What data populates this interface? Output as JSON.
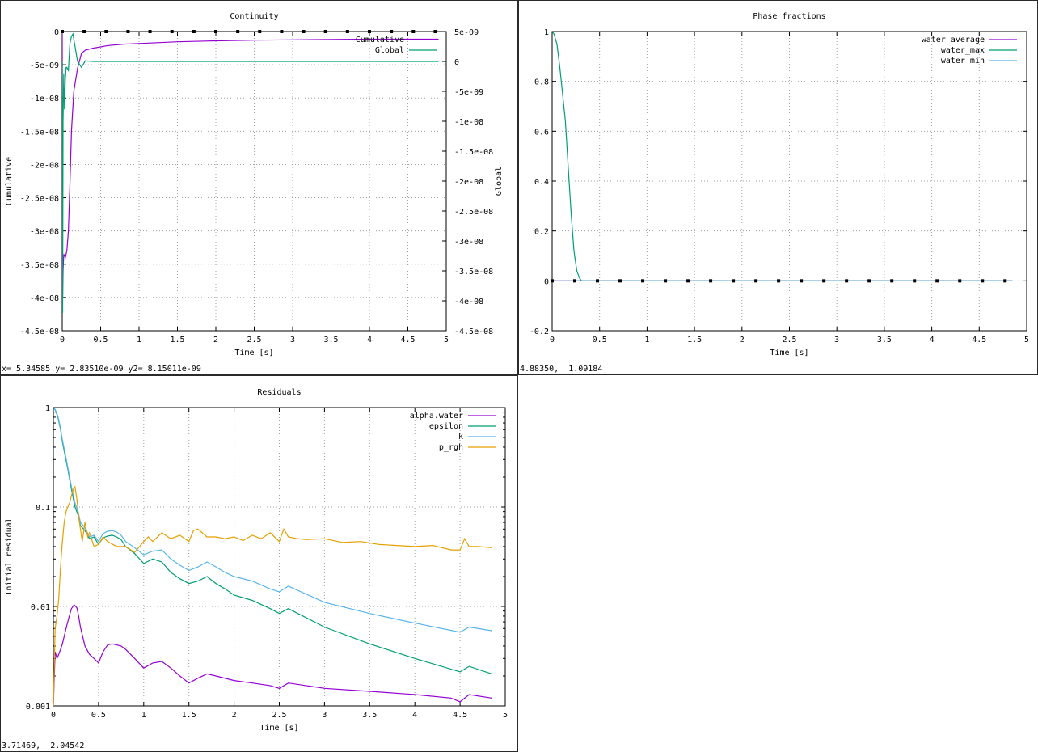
{
  "windows": {
    "continuity": {
      "status": "x= 5.34585 y= 2.83510e-09 y2= 8.15011e-09",
      "chart_data": {
        "type": "line",
        "title": "Continuity",
        "xlabel": "Time [s]",
        "ylabel": "Cumulative",
        "y2label": "Global",
        "xlim": [
          0,
          5
        ],
        "ylim": [
          -4.5e-08,
          0
        ],
        "y2lim": [
          -4.5e-08,
          5e-09
        ],
        "grid": true,
        "legend_position": "top-right",
        "x_ticks": [
          "0",
          "0.5",
          "1",
          "1.5",
          "2",
          "2.5",
          "3",
          "3.5",
          "4",
          "4.5",
          "5"
        ],
        "y_ticks": [
          "0",
          "-5e-09",
          "-1e-08",
          "-1.5e-08",
          "-2e-08",
          "-2.5e-08",
          "-3e-08",
          "-3.5e-08",
          "-4e-08",
          "-4.5e-08"
        ],
        "y2_ticks": [
          "5e-09",
          "0",
          "-5e-09",
          "-1e-08",
          "-1.5e-08",
          "-2e-08",
          "-2.5e-08",
          "-3e-08",
          "-3.5e-08",
          "-4e-08",
          "-4.5e-08"
        ],
        "series": [
          {
            "name": "Cumulative",
            "axis": "y1",
            "color": "#9400d3",
            "x": [
              0,
              0.005,
              0.01,
              0.02,
              0.04,
              0.06,
              0.08,
              0.1,
              0.12,
              0.15,
              0.2,
              0.25,
              0.3,
              0.4,
              0.6,
              0.8,
              1,
              1.5,
              2,
              2.5,
              3,
              3.5,
              4,
              4.5,
              4.9
            ],
            "y": [
              0,
              -4e-08,
              -3.6e-08,
              -3.35e-08,
              -3.4e-08,
              -3.3e-08,
              -3e-08,
              -2.3e-08,
              -1.5e-08,
              -9e-09,
              -5.5e-09,
              -3.3e-09,
              -2.8e-09,
              -2.5e-09,
              -2.1e-09,
              -1.9e-09,
              -1.8e-09,
              -1.55e-09,
              -1.4e-09,
              -1.3e-09,
              -1.25e-09,
              -1.2e-09,
              -1.15e-09,
              -1.15e-09,
              -1.15e-09
            ]
          },
          {
            "name": "Global",
            "axis": "y2",
            "color": "#009e73",
            "x": [
              0,
              0.005,
              0.01,
              0.02,
              0.03,
              0.04,
              0.05,
              0.06,
              0.08,
              0.1,
              0.12,
              0.14,
              0.16,
              0.2,
              0.25,
              0.3,
              0.4,
              1,
              2,
              3,
              4,
              4.9
            ],
            "y": [
              0,
              -4.2e-08,
              -1e-08,
              -2e-09,
              -8e-09,
              -3e-09,
              -1e-09,
              -1e-09,
              -1.5e-09,
              3e-09,
              4.2e-09,
              4.6e-09,
              3e-09,
              0,
              -1e-09,
              1e-10,
              0,
              0,
              0,
              0,
              0,
              0
            ]
          }
        ]
      }
    },
    "phase_fractions": {
      "status": "4.88350,  1.09184",
      "chart_data": {
        "type": "line",
        "title": "Phase fractions",
        "xlabel": "Time [s]",
        "ylabel": "",
        "xlim": [
          0,
          5
        ],
        "ylim": [
          -0.2,
          1
        ],
        "grid": true,
        "legend_position": "top-right",
        "x_ticks": [
          "0",
          "0.5",
          "1",
          "1.5",
          "2",
          "2.5",
          "3",
          "3.5",
          "4",
          "4.5",
          "5"
        ],
        "y_ticks": [
          "1",
          "0.8",
          "0.6",
          "0.4",
          "0.2",
          "0",
          "-0.2"
        ],
        "series": [
          {
            "name": "water_average",
            "color": "#9400d3",
            "x": [
              0,
              4.85
            ],
            "y": [
              0,
              0
            ]
          },
          {
            "name": "water_max",
            "color": "#009e73",
            "x": [
              0,
              0.02,
              0.05,
              0.08,
              0.11,
              0.14,
              0.17,
              0.2,
              0.23,
              0.26,
              0.29,
              0.31,
              0.33,
              0.5,
              1,
              2,
              3,
              4,
              4.85
            ],
            "y": [
              1,
              0.99,
              0.95,
              0.86,
              0.75,
              0.64,
              0.45,
              0.27,
              0.12,
              0.04,
              0.01,
              0,
              0,
              0,
              0,
              0,
              0,
              0,
              0
            ]
          },
          {
            "name": "water_min",
            "color": "#56b4e9",
            "x": [
              0,
              4.85
            ],
            "y": [
              0,
              0
            ]
          }
        ]
      }
    },
    "residuals": {
      "status": "3.71469,  2.04542",
      "chart_data": {
        "type": "line",
        "title": "Residuals",
        "xlabel": "Time [s]",
        "ylabel": "Initial residual",
        "xlim": [
          0,
          5
        ],
        "ylim": [
          0.001,
          1
        ],
        "log_y": true,
        "grid": true,
        "legend_position": "top-right",
        "x_ticks": [
          "0",
          "0.5",
          "1",
          "1.5",
          "2",
          "2.5",
          "3",
          "3.5",
          "4",
          "4.5",
          "5"
        ],
        "y_ticks": [
          "1",
          "0.1",
          "0.01",
          "0.001"
        ],
        "series": [
          {
            "name": "alpha.water",
            "color": "#9400d3",
            "x": [
              0,
              0.02,
              0.04,
              0.06,
              0.08,
              0.1,
              0.12,
              0.15,
              0.18,
              0.2,
              0.23,
              0.26,
              0.28,
              0.3,
              0.35,
              0.4,
              0.45,
              0.5,
              0.55,
              0.6,
              0.65,
              0.7,
              0.75,
              0.8,
              0.9,
              1,
              1.1,
              1.2,
              1.3,
              1.4,
              1.5,
              1.6,
              1.7,
              1.8,
              2,
              2.2,
              2.4,
              2.5,
              2.6,
              3,
              3.5,
              4,
              4.4,
              4.5,
              4.6,
              4.85
            ],
            "y": [
              0.001,
              0.0035,
              0.003,
              0.0033,
              0.0037,
              0.0042,
              0.005,
              0.0065,
              0.0082,
              0.0095,
              0.0104,
              0.0097,
              0.008,
              0.0062,
              0.004,
              0.0033,
              0.003,
              0.0027,
              0.0035,
              0.0041,
              0.0042,
              0.0041,
              0.004,
              0.0037,
              0.003,
              0.0024,
              0.0027,
              0.0028,
              0.0024,
              0.002,
              0.0017,
              0.0019,
              0.0021,
              0.002,
              0.0018,
              0.0017,
              0.0016,
              0.0015,
              0.0017,
              0.0015,
              0.0014,
              0.0013,
              0.0012,
              0.0011,
              0.0013,
              0.0012
            ]
          },
          {
            "name": "epsilon",
            "color": "#009e73",
            "x": [
              0,
              0.02,
              0.05,
              0.08,
              0.1,
              0.13,
              0.16,
              0.2,
              0.24,
              0.28,
              0.3,
              0.35,
              0.4,
              0.45,
              0.5,
              0.55,
              0.6,
              0.65,
              0.7,
              0.75,
              0.8,
              0.9,
              1,
              1.1,
              1.2,
              1.3,
              1.4,
              1.5,
              1.6,
              1.7,
              1.8,
              1.9,
              2,
              2.2,
              2.4,
              2.5,
              2.6,
              3,
              3.5,
              4,
              4.5,
              4.6,
              4.85
            ],
            "y": [
              1,
              0.95,
              0.8,
              0.6,
              0.45,
              0.33,
              0.24,
              0.15,
              0.1,
              0.08,
              0.065,
              0.058,
              0.048,
              0.05,
              0.042,
              0.049,
              0.051,
              0.052,
              0.05,
              0.047,
              0.04,
              0.034,
              0.027,
              0.03,
              0.028,
              0.022,
              0.019,
              0.017,
              0.018,
              0.02,
              0.017,
              0.015,
              0.013,
              0.0115,
              0.0095,
              0.0085,
              0.0095,
              0.0062,
              0.0042,
              0.003,
              0.0022,
              0.0025,
              0.0021
            ]
          },
          {
            "name": "k",
            "color": "#56b4e9",
            "x": [
              0,
              0.02,
              0.05,
              0.08,
              0.1,
              0.13,
              0.16,
              0.2,
              0.24,
              0.28,
              0.3,
              0.35,
              0.4,
              0.45,
              0.5,
              0.55,
              0.6,
              0.65,
              0.7,
              0.75,
              0.8,
              0.9,
              1,
              1.1,
              1.2,
              1.3,
              1.4,
              1.5,
              1.6,
              1.7,
              1.8,
              1.9,
              2,
              2.2,
              2.4,
              2.5,
              2.6,
              3,
              3.5,
              4,
              4.5,
              4.6,
              4.85
            ],
            "y": [
              1,
              0.96,
              0.82,
              0.62,
              0.47,
              0.35,
              0.25,
              0.16,
              0.11,
              0.085,
              0.07,
              0.062,
              0.05,
              0.052,
              0.045,
              0.054,
              0.057,
              0.058,
              0.056,
              0.052,
              0.045,
              0.039,
              0.033,
              0.036,
              0.037,
              0.03,
              0.026,
              0.023,
              0.025,
              0.028,
              0.025,
              0.022,
              0.02,
              0.018,
              0.015,
              0.014,
              0.016,
              0.011,
              0.0085,
              0.0068,
              0.0055,
              0.0062,
              0.0057
            ]
          },
          {
            "name": "p_rgh",
            "color": "#e69f00",
            "x": [
              0,
              0.02,
              0.04,
              0.06,
              0.08,
              0.1,
              0.12,
              0.14,
              0.16,
              0.18,
              0.2,
              0.22,
              0.24,
              0.26,
              0.28,
              0.3,
              0.32,
              0.35,
              0.38,
              0.4,
              0.45,
              0.5,
              0.55,
              0.6,
              0.7,
              0.8,
              0.9,
              1,
              1.05,
              1.1,
              1.2,
              1.3,
              1.4,
              1.5,
              1.55,
              1.6,
              1.7,
              1.8,
              1.9,
              2,
              2.1,
              2.2,
              2.3,
              2.4,
              2.5,
              2.55,
              2.6,
              2.7,
              2.8,
              3,
              3.2,
              3.4,
              3.6,
              3.8,
              4,
              4.2,
              4.4,
              4.5,
              4.55,
              4.6,
              4.7,
              4.85
            ],
            "y": [
              0.001,
              0.006,
              0.008,
              0.012,
              0.025,
              0.045,
              0.07,
              0.09,
              0.1,
              0.11,
              0.13,
              0.15,
              0.16,
              0.12,
              0.08,
              0.06,
              0.045,
              0.07,
              0.05,
              0.055,
              0.04,
              0.042,
              0.05,
              0.045,
              0.04,
              0.04,
              0.035,
              0.045,
              0.05,
              0.045,
              0.055,
              0.048,
              0.052,
              0.045,
              0.058,
              0.06,
              0.05,
              0.05,
              0.048,
              0.05,
              0.046,
              0.052,
              0.048,
              0.055,
              0.045,
              0.06,
              0.05,
              0.048,
              0.047,
              0.048,
              0.044,
              0.045,
              0.042,
              0.041,
              0.04,
              0.041,
              0.037,
              0.037,
              0.048,
              0.04,
              0.04,
              0.039
            ]
          }
        ]
      }
    }
  }
}
